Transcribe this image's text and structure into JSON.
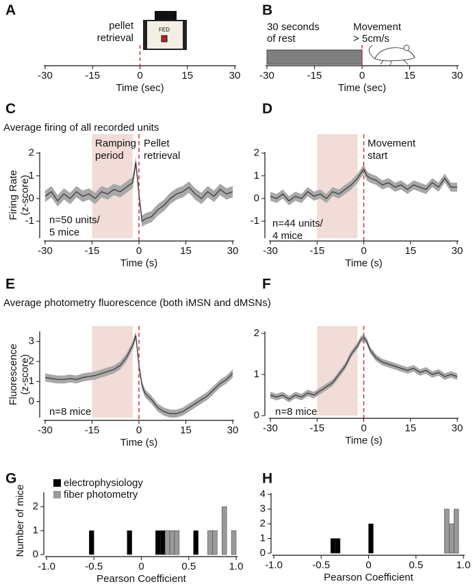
{
  "chart_data": [
    {
      "type": "timeline",
      "panel": "A",
      "xlim": [
        -30,
        30
      ],
      "xticks": [
        -30,
        -15,
        0,
        15,
        30
      ],
      "xlabel": "Time (sec)",
      "event_x": 0,
      "event_label": [
        "pellet",
        "retrieval"
      ],
      "device_label": "FED"
    },
    {
      "type": "timeline",
      "panel": "B",
      "xlim": [
        -30,
        30
      ],
      "xticks": [
        -30,
        -15,
        0,
        15,
        30
      ],
      "xlabel": "Time (sec)",
      "event_x": 0,
      "rest_span": [
        -30,
        0
      ],
      "rest_label": [
        "30 seconds",
        "of rest"
      ],
      "movement_label": [
        "Movement",
        "> 5cm/s"
      ]
    },
    {
      "type": "line",
      "panel": "C",
      "subtitle": "Average firing of all recorded units",
      "xlim": [
        -30,
        30
      ],
      "xticks": [
        -30,
        -15,
        0,
        15,
        30
      ],
      "ylim": [
        -1.75,
        2.05
      ],
      "yticks": [
        -1,
        0,
        1,
        2
      ],
      "xlabel": "Time (s)",
      "ylabel": [
        "Firing Rate",
        "(z-score)"
      ],
      "shade": [
        -15,
        -2
      ],
      "shade_label": [
        "Ramping",
        "period"
      ],
      "event_x": 0,
      "event_label": [
        "Pellet",
        "retrieval"
      ],
      "n_label": [
        "n=50 units/",
        "5 mice"
      ],
      "x": [
        -30,
        -28,
        -26,
        -24,
        -22,
        -20,
        -18,
        -16,
        -14,
        -12,
        -10,
        -8,
        -6,
        -4,
        -2,
        -1,
        0,
        1,
        2,
        4,
        6,
        8,
        10,
        12,
        14,
        16,
        18,
        20,
        22,
        24,
        26,
        28,
        30
      ],
      "values": [
        0.1,
        0.3,
        -0.1,
        0.2,
        0.0,
        0.3,
        0.1,
        0.2,
        0.0,
        0.3,
        0.2,
        0.4,
        0.3,
        0.5,
        0.7,
        1.6,
        0.2,
        -1.0,
        -0.9,
        -0.8,
        -0.5,
        -0.3,
        0.0,
        0.2,
        0.3,
        0.5,
        0.2,
        0.0,
        0.3,
        0.1,
        0.4,
        0.2,
        0.3
      ],
      "errors": [
        0.25,
        0.25,
        0.25,
        0.25,
        0.25,
        0.25,
        0.25,
        0.25,
        0.25,
        0.25,
        0.25,
        0.25,
        0.25,
        0.25,
        0.25,
        0.25,
        0.25,
        0.25,
        0.25,
        0.25,
        0.25,
        0.25,
        0.25,
        0.25,
        0.25,
        0.25,
        0.25,
        0.25,
        0.25,
        0.25,
        0.25,
        0.25,
        0.25
      ]
    },
    {
      "type": "line",
      "panel": "D",
      "xlim": [
        -30,
        30
      ],
      "xticks": [
        -30,
        -15,
        0,
        15,
        30
      ],
      "ylim": [
        -1.75,
        2.05
      ],
      "yticks": [
        -1,
        0,
        1,
        2
      ],
      "xlabel": "Time (s)",
      "shade": [
        -15,
        -2
      ],
      "event_x": 0,
      "event_label": [
        "Movement",
        "start"
      ],
      "n_label": [
        "n=44 units/",
        "4 mice"
      ],
      "x": [
        -30,
        -28,
        -26,
        -24,
        -22,
        -20,
        -18,
        -16,
        -14,
        -12,
        -10,
        -8,
        -6,
        -4,
        -2,
        -1,
        0,
        1,
        2,
        4,
        6,
        8,
        10,
        12,
        14,
        16,
        18,
        20,
        22,
        24,
        26,
        28,
        30
      ],
      "values": [
        0.1,
        0.0,
        0.2,
        -0.1,
        0.1,
        0.0,
        0.3,
        0.1,
        0.2,
        0.0,
        0.3,
        0.2,
        0.4,
        0.6,
        0.9,
        1.1,
        1.3,
        1.0,
        0.9,
        0.8,
        0.6,
        0.7,
        0.5,
        0.6,
        0.4,
        0.6,
        0.5,
        0.4,
        0.7,
        0.5,
        0.9,
        0.5,
        0.5
      ],
      "errors": [
        0.2,
        0.2,
        0.2,
        0.2,
        0.2,
        0.2,
        0.2,
        0.2,
        0.2,
        0.2,
        0.2,
        0.2,
        0.2,
        0.2,
        0.2,
        0.2,
        0.2,
        0.2,
        0.2,
        0.2,
        0.2,
        0.2,
        0.2,
        0.2,
        0.2,
        0.2,
        0.2,
        0.2,
        0.2,
        0.2,
        0.2,
        0.2,
        0.2
      ]
    },
    {
      "type": "line",
      "panel": "E",
      "subtitle": "Average photometry fluorescence (both iMSN and dMSNs)",
      "xlim": [
        -30,
        30
      ],
      "xticks": [
        -30,
        -15,
        0,
        15,
        30
      ],
      "ylim": [
        -0.8,
        3.5
      ],
      "yticks": [
        0,
        1,
        2,
        3
      ],
      "xlabel": "Time (s)",
      "ylabel": [
        "Fluorescence",
        "(z-score)"
      ],
      "shade": [
        -15,
        -2
      ],
      "event_x": 0,
      "n_label": [
        "n=8 mice"
      ],
      "x": [
        -30,
        -28,
        -26,
        -24,
        -22,
        -20,
        -18,
        -16,
        -14,
        -12,
        -10,
        -8,
        -6,
        -4,
        -2,
        -1,
        0,
        1,
        2,
        4,
        6,
        8,
        10,
        12,
        14,
        16,
        18,
        20,
        22,
        24,
        26,
        28,
        30
      ],
      "values": [
        1.2,
        1.15,
        1.1,
        1.1,
        1.15,
        1.1,
        1.2,
        1.25,
        1.3,
        1.4,
        1.5,
        1.6,
        1.8,
        2.2,
        2.8,
        3.3,
        1.8,
        0.8,
        0.4,
        0.1,
        -0.3,
        -0.5,
        -0.6,
        -0.6,
        -0.5,
        -0.3,
        -0.1,
        0.1,
        0.3,
        0.6,
        0.9,
        1.1,
        1.4
      ],
      "errors": [
        0.2,
        0.2,
        0.2,
        0.2,
        0.2,
        0.2,
        0.2,
        0.2,
        0.2,
        0.2,
        0.2,
        0.2,
        0.2,
        0.2,
        0.2,
        0.2,
        0.2,
        0.2,
        0.2,
        0.2,
        0.2,
        0.2,
        0.2,
        0.2,
        0.2,
        0.2,
        0.2,
        0.2,
        0.2,
        0.2,
        0.2,
        0.2,
        0.2
      ]
    },
    {
      "type": "line",
      "panel": "F",
      "xlim": [
        -30,
        30
      ],
      "xticks": [
        -30,
        -15,
        0,
        15,
        30
      ],
      "ylim": [
        0,
        2.05
      ],
      "yticks": [
        0,
        1,
        2
      ],
      "xlabel": "Time (s)",
      "shade": [
        -15,
        -2
      ],
      "event_x": 0,
      "n_label": [
        "n=8 mice"
      ],
      "x": [
        -30,
        -28,
        -26,
        -24,
        -22,
        -20,
        -18,
        -16,
        -14,
        -12,
        -10,
        -8,
        -6,
        -4,
        -2,
        -1,
        0,
        1,
        2,
        4,
        6,
        8,
        10,
        12,
        14,
        16,
        18,
        20,
        22,
        24,
        26,
        28,
        30
      ],
      "values": [
        0.5,
        0.45,
        0.5,
        0.4,
        0.5,
        0.45,
        0.55,
        0.5,
        0.6,
        0.7,
        0.8,
        1.0,
        1.2,
        1.5,
        1.7,
        1.85,
        1.9,
        1.8,
        1.6,
        1.4,
        1.3,
        1.25,
        1.2,
        1.15,
        1.1,
        1.15,
        1.05,
        1.1,
        1.0,
        1.05,
        0.95,
        1.0,
        0.95
      ],
      "errors": [
        0.08,
        0.08,
        0.08,
        0.08,
        0.08,
        0.08,
        0.08,
        0.08,
        0.08,
        0.08,
        0.08,
        0.08,
        0.08,
        0.08,
        0.08,
        0.08,
        0.08,
        0.08,
        0.08,
        0.08,
        0.08,
        0.08,
        0.08,
        0.08,
        0.08,
        0.08,
        0.08,
        0.08,
        0.08,
        0.08,
        0.08,
        0.08,
        0.08
      ]
    },
    {
      "type": "histogram",
      "panel": "G",
      "legend": "upper left",
      "xlim": [
        -1,
        1
      ],
      "xticks": [
        {
          "value": -1,
          "label": "-1.0"
        },
        -0.5,
        0,
        0.5,
        {
          "value": 1,
          "label": "1.0"
        }
      ],
      "ylim": [
        0,
        2.6
      ],
      "yticks": [
        0,
        1,
        2
      ],
      "xlabel": "Pearson Coefficient",
      "ylabel": "Number of mice",
      "bins": [
        -1,
        -0.95,
        -0.9,
        -0.85,
        -0.8,
        -0.75,
        -0.7,
        -0.65,
        -0.6,
        -0.55,
        -0.5,
        -0.45,
        -0.4,
        -0.35,
        -0.3,
        -0.25,
        -0.2,
        -0.15,
        -0.1,
        -0.05,
        0,
        0.05,
        0.1,
        0.15,
        0.2,
        0.25,
        0.3,
        0.35,
        0.4,
        0.45,
        0.5,
        0.55,
        0.6,
        0.65,
        0.7,
        0.75,
        0.8,
        0.85,
        0.9,
        0.95,
        1
      ],
      "series": [
        {
          "name": "electrophysiology",
          "color": "#000000",
          "values": [
            0,
            0,
            0,
            0,
            0,
            0,
            0,
            0,
            0,
            1,
            0,
            0,
            0,
            0,
            0,
            0,
            0,
            1,
            0,
            0,
            0,
            0,
            0,
            1,
            1,
            0,
            0,
            0,
            0,
            0,
            0,
            1,
            0,
            0,
            0,
            0,
            0,
            0,
            0,
            0
          ]
        },
        {
          "name": "fiber photometry",
          "color": "#9a9a9a",
          "values": [
            0,
            0,
            0,
            0,
            0,
            0,
            0,
            0,
            0,
            0,
            0,
            0,
            0,
            0,
            0,
            0,
            0,
            0,
            0,
            0,
            0,
            0,
            0,
            0,
            0,
            1,
            1,
            1,
            0,
            0,
            0,
            0,
            0,
            0,
            1,
            1,
            0,
            2,
            0,
            1
          ]
        }
      ]
    },
    {
      "type": "histogram",
      "panel": "H",
      "xlim": [
        -1,
        1
      ],
      "xticks": [
        {
          "value": -1,
          "label": "-1.0"
        },
        -0.5,
        0,
        0.5,
        {
          "value": 1,
          "label": "1.0"
        }
      ],
      "ylim": [
        0,
        4.1
      ],
      "yticks": [
        0,
        1,
        2,
        3,
        4
      ],
      "xlabel": "Pearson Coefficient",
      "bins": [
        -1,
        -0.95,
        -0.9,
        -0.85,
        -0.8,
        -0.75,
        -0.7,
        -0.65,
        -0.6,
        -0.55,
        -0.5,
        -0.45,
        -0.4,
        -0.35,
        -0.3,
        -0.25,
        -0.2,
        -0.15,
        -0.1,
        -0.05,
        0,
        0.05,
        0.1,
        0.15,
        0.2,
        0.25,
        0.3,
        0.35,
        0.4,
        0.45,
        0.5,
        0.55,
        0.6,
        0.65,
        0.7,
        0.75,
        0.8,
        0.85,
        0.9,
        0.95,
        1
      ],
      "series": [
        {
          "color": "#000000",
          "values": [
            0,
            0,
            0,
            0,
            0,
            0,
            0,
            0,
            0,
            0,
            0,
            0,
            1,
            1,
            0,
            0,
            0,
            0,
            0,
            0,
            2,
            0,
            0,
            0,
            0,
            0,
            0,
            0,
            0,
            0,
            0,
            0,
            0,
            0,
            0,
            0,
            0,
            0,
            0,
            0
          ]
        },
        {
          "color": "#9a9a9a",
          "values": [
            0,
            0,
            0,
            0,
            0,
            0,
            0,
            0,
            0,
            0,
            0,
            0,
            0,
            0,
            0,
            0,
            0,
            0,
            0,
            0,
            0,
            0,
            0,
            0,
            0,
            0,
            0,
            0,
            0,
            0,
            0,
            0,
            0,
            0,
            0,
            0,
            3,
            2,
            3,
            0
          ]
        }
      ]
    }
  ]
}
